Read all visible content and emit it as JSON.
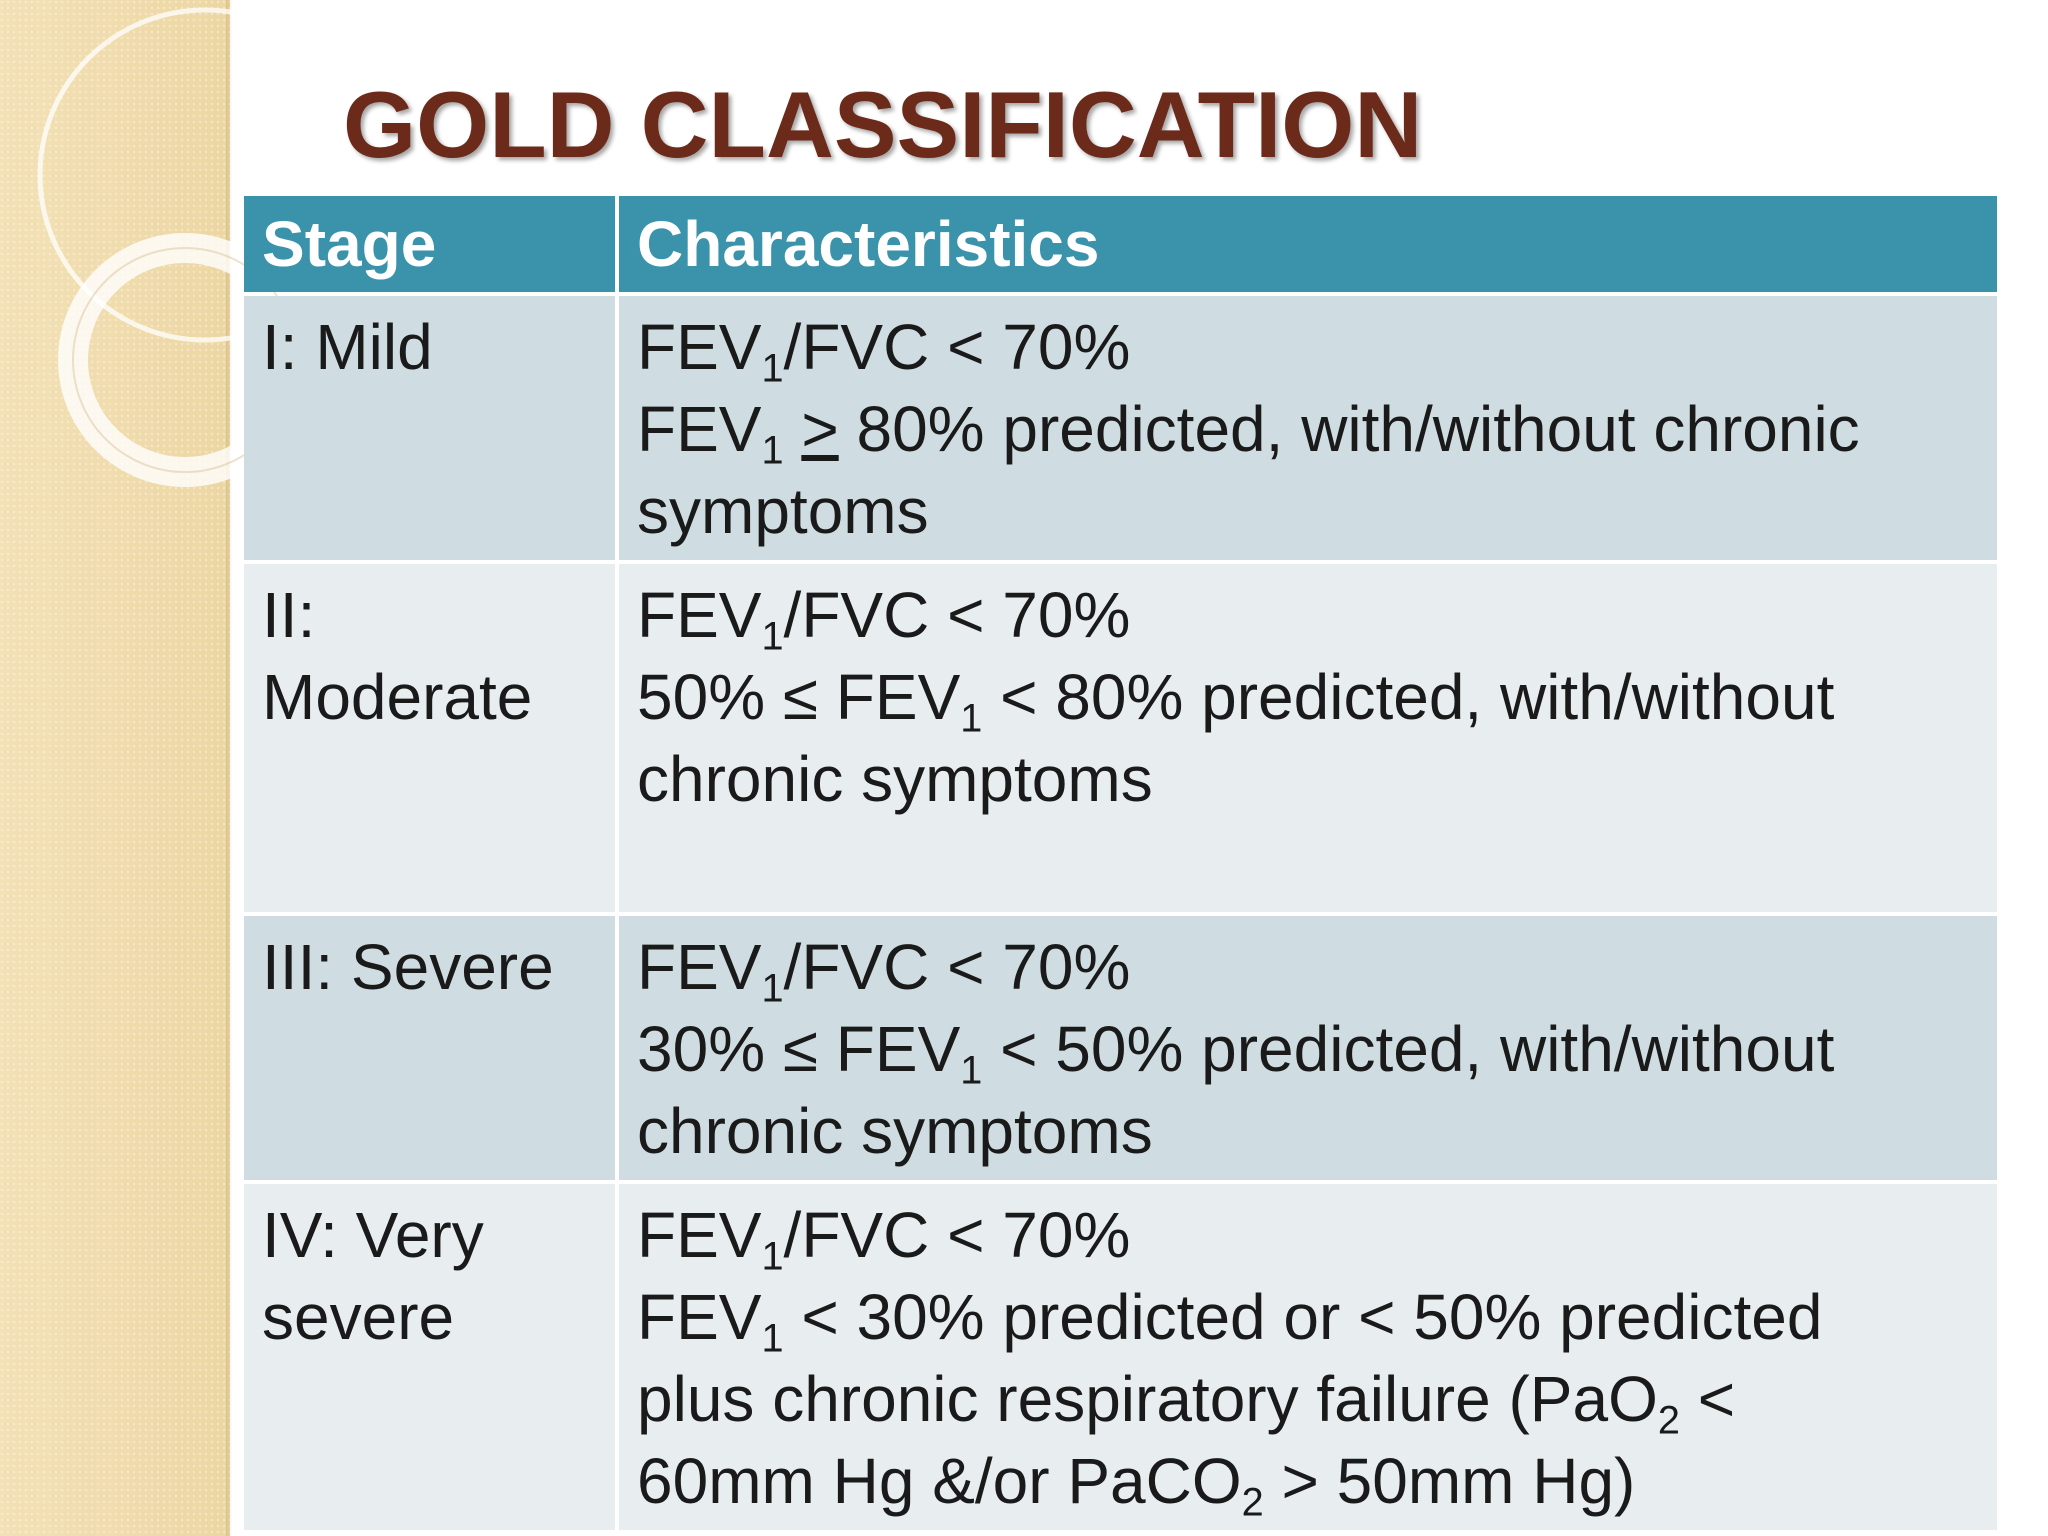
{
  "title": "GOLD CLASSIFICATION",
  "colors": {
    "title": "#6b2a1a",
    "header_bg": "#3a93ab",
    "row_odd_bg": "#cfdde2",
    "row_even_bg": "#e8eef0",
    "side_strip": "#efdcae"
  },
  "table": {
    "headers": [
      "Stage",
      "Characteristics"
    ],
    "rows": [
      {
        "stage": "I: Mild",
        "lines": [
          {
            "a": "FEV",
            "sub": "1",
            "b": "/FVC < 70%"
          },
          {
            "a": "FEV",
            "sub": "1",
            "op": ">",
            "b": " 80% predicted, with/without chronic"
          },
          {
            "a": "symptoms"
          }
        ]
      },
      {
        "stage_line1": "II:",
        "stage_line2": "Moderate",
        "lines": [
          {
            "a": "FEV",
            "sub": "1",
            "b": "/FVC < 70%"
          },
          {
            "a": "50% ≤ FEV",
            "sub": "1",
            "b": " < 80% predicted, with/without"
          },
          {
            "a": "chronic symptoms"
          }
        ]
      },
      {
        "stage": "III: Severe",
        "lines": [
          {
            "a": "FEV",
            "sub": "1",
            "b": "/FVC < 70%"
          },
          {
            "a": "30% ≤ FEV",
            "sub": "1",
            "b": " < 50% predicted, with/without"
          },
          {
            "a": "chronic symptoms"
          }
        ]
      },
      {
        "stage_line1": "IV: Very",
        "stage_line2": "severe",
        "lines": [
          {
            "a": "FEV",
            "sub": "1",
            "b": "/FVC < 70%"
          },
          {
            "a": "FEV",
            "sub": "1",
            "b": " < 30% predicted or < 50% predicted"
          },
          {
            "a": "plus chronic respiratory failure (PaO",
            "sub": "2",
            "b": " <"
          },
          {
            "a": "60mm Hg &/or PaCO",
            "sub": "2",
            "b": " > 50mm Hg)"
          }
        ]
      }
    ]
  }
}
